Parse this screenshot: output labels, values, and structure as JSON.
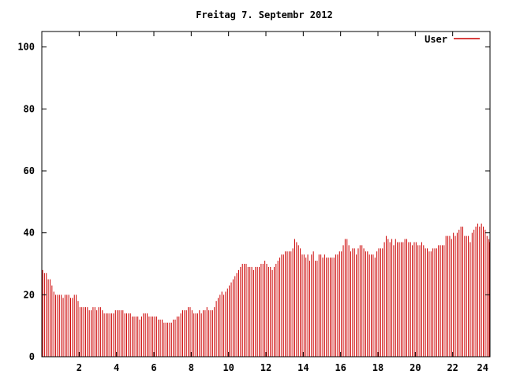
{
  "chart_data": {
    "type": "bar",
    "title": "Freitag 7. Septembr 2012",
    "xlabel": "",
    "ylabel": "",
    "xlim": [
      0,
      24
    ],
    "ylim": [
      0,
      105
    ],
    "grid": false,
    "legend_position": "top-right",
    "x_ticks": [
      "2",
      "4",
      "6",
      "8",
      "10",
      "12",
      "14",
      "16",
      "18",
      "20",
      "22",
      "24"
    ],
    "y_ticks": [
      "0",
      "20",
      "40",
      "60",
      "80",
      "100"
    ],
    "series": [
      {
        "name": "User",
        "color": "#cc0000",
        "points": [
          [
            0.0,
            28
          ],
          [
            0.1,
            27
          ],
          [
            0.2,
            27
          ],
          [
            0.3,
            25
          ],
          [
            0.4,
            25
          ],
          [
            0.5,
            23
          ],
          [
            0.6,
            21
          ],
          [
            0.7,
            20
          ],
          [
            0.8,
            20
          ],
          [
            0.9,
            20
          ],
          [
            1.0,
            20
          ],
          [
            1.1,
            19
          ],
          [
            1.2,
            20
          ],
          [
            1.3,
            20
          ],
          [
            1.4,
            20
          ],
          [
            1.5,
            19
          ],
          [
            1.6,
            19
          ],
          [
            1.7,
            20
          ],
          [
            1.8,
            20
          ],
          [
            1.9,
            18
          ],
          [
            2.0,
            16
          ],
          [
            2.1,
            16
          ],
          [
            2.2,
            16
          ],
          [
            2.3,
            16
          ],
          [
            2.4,
            16
          ],
          [
            2.5,
            15
          ],
          [
            2.6,
            15
          ],
          [
            2.7,
            16
          ],
          [
            2.8,
            16
          ],
          [
            2.9,
            15
          ],
          [
            3.0,
            16
          ],
          [
            3.1,
            16
          ],
          [
            3.2,
            15
          ],
          [
            3.3,
            14
          ],
          [
            3.4,
            14
          ],
          [
            3.5,
            14
          ],
          [
            3.6,
            14
          ],
          [
            3.7,
            14
          ],
          [
            3.8,
            14
          ],
          [
            3.9,
            15
          ],
          [
            4.0,
            15
          ],
          [
            4.1,
            15
          ],
          [
            4.2,
            15
          ],
          [
            4.3,
            15
          ],
          [
            4.4,
            14
          ],
          [
            4.5,
            14
          ],
          [
            4.6,
            14
          ],
          [
            4.7,
            14
          ],
          [
            4.8,
            13
          ],
          [
            4.9,
            13
          ],
          [
            5.0,
            13
          ],
          [
            5.1,
            13
          ],
          [
            5.2,
            12
          ],
          [
            5.3,
            13
          ],
          [
            5.4,
            14
          ],
          [
            5.5,
            14
          ],
          [
            5.6,
            14
          ],
          [
            5.7,
            13
          ],
          [
            5.8,
            13
          ],
          [
            5.9,
            13
          ],
          [
            6.0,
            13
          ],
          [
            6.1,
            13
          ],
          [
            6.2,
            12
          ],
          [
            6.3,
            12
          ],
          [
            6.4,
            12
          ],
          [
            6.5,
            11
          ],
          [
            6.6,
            11
          ],
          [
            6.7,
            11
          ],
          [
            6.8,
            11
          ],
          [
            6.9,
            11
          ],
          [
            7.0,
            12
          ],
          [
            7.1,
            12
          ],
          [
            7.2,
            13
          ],
          [
            7.3,
            13
          ],
          [
            7.4,
            14
          ],
          [
            7.5,
            15
          ],
          [
            7.6,
            15
          ],
          [
            7.7,
            15
          ],
          [
            7.8,
            16
          ],
          [
            7.9,
            16
          ],
          [
            8.0,
            15
          ],
          [
            8.1,
            14
          ],
          [
            8.2,
            14
          ],
          [
            8.3,
            14
          ],
          [
            8.4,
            15
          ],
          [
            8.5,
            14
          ],
          [
            8.6,
            15
          ],
          [
            8.7,
            15
          ],
          [
            8.8,
            16
          ],
          [
            8.9,
            15
          ],
          [
            9.0,
            15
          ],
          [
            9.1,
            15
          ],
          [
            9.2,
            16
          ],
          [
            9.3,
            18
          ],
          [
            9.4,
            19
          ],
          [
            9.5,
            20
          ],
          [
            9.6,
            21
          ],
          [
            9.7,
            20
          ],
          [
            9.8,
            21
          ],
          [
            9.9,
            22
          ],
          [
            10.0,
            23
          ],
          [
            10.1,
            24
          ],
          [
            10.2,
            25
          ],
          [
            10.3,
            26
          ],
          [
            10.4,
            27
          ],
          [
            10.5,
            28
          ],
          [
            10.6,
            29
          ],
          [
            10.7,
            30
          ],
          [
            10.8,
            30
          ],
          [
            10.9,
            30
          ],
          [
            11.0,
            29
          ],
          [
            11.1,
            29
          ],
          [
            11.2,
            29
          ],
          [
            11.3,
            28
          ],
          [
            11.4,
            29
          ],
          [
            11.5,
            29
          ],
          [
            11.6,
            29
          ],
          [
            11.7,
            30
          ],
          [
            11.8,
            30
          ],
          [
            11.9,
            31
          ],
          [
            12.0,
            30
          ],
          [
            12.1,
            29
          ],
          [
            12.2,
            29
          ],
          [
            12.3,
            28
          ],
          [
            12.4,
            29
          ],
          [
            12.5,
            30
          ],
          [
            12.6,
            31
          ],
          [
            12.7,
            32
          ],
          [
            12.8,
            33
          ],
          [
            12.9,
            33
          ],
          [
            13.0,
            34
          ],
          [
            13.1,
            34
          ],
          [
            13.2,
            34
          ],
          [
            13.3,
            34
          ],
          [
            13.4,
            35
          ],
          [
            13.5,
            38
          ],
          [
            13.6,
            37
          ],
          [
            13.7,
            36
          ],
          [
            13.8,
            35
          ],
          [
            13.9,
            33
          ],
          [
            14.0,
            33
          ],
          [
            14.1,
            32
          ],
          [
            14.2,
            33
          ],
          [
            14.3,
            31
          ],
          [
            14.4,
            33
          ],
          [
            14.5,
            34
          ],
          [
            14.6,
            31
          ],
          [
            14.7,
            31
          ],
          [
            14.8,
            33
          ],
          [
            14.9,
            33
          ],
          [
            15.0,
            32
          ],
          [
            15.1,
            33
          ],
          [
            15.2,
            32
          ],
          [
            15.3,
            32
          ],
          [
            15.4,
            32
          ],
          [
            15.5,
            32
          ],
          [
            15.6,
            32
          ],
          [
            15.7,
            33
          ],
          [
            15.8,
            33
          ],
          [
            15.9,
            34
          ],
          [
            16.0,
            34
          ],
          [
            16.1,
            36
          ],
          [
            16.2,
            38
          ],
          [
            16.3,
            38
          ],
          [
            16.4,
            36
          ],
          [
            16.5,
            34
          ],
          [
            16.6,
            35
          ],
          [
            16.7,
            35
          ],
          [
            16.8,
            33
          ],
          [
            16.9,
            35
          ],
          [
            17.0,
            36
          ],
          [
            17.1,
            36
          ],
          [
            17.2,
            35
          ],
          [
            17.3,
            34
          ],
          [
            17.4,
            34
          ],
          [
            17.5,
            33
          ],
          [
            17.6,
            33
          ],
          [
            17.7,
            33
          ],
          [
            17.8,
            32
          ],
          [
            17.9,
            34
          ],
          [
            18.0,
            35
          ],
          [
            18.1,
            35
          ],
          [
            18.2,
            35
          ],
          [
            18.3,
            37
          ],
          [
            18.4,
            39
          ],
          [
            18.5,
            38
          ],
          [
            18.6,
            37
          ],
          [
            18.7,
            38
          ],
          [
            18.8,
            36
          ],
          [
            18.9,
            38
          ],
          [
            19.0,
            37
          ],
          [
            19.1,
            37
          ],
          [
            19.2,
            37
          ],
          [
            19.3,
            37
          ],
          [
            19.4,
            38
          ],
          [
            19.5,
            38
          ],
          [
            19.6,
            37
          ],
          [
            19.7,
            37
          ],
          [
            19.8,
            36
          ],
          [
            19.9,
            37
          ],
          [
            20.0,
            37
          ],
          [
            20.1,
            36
          ],
          [
            20.2,
            36
          ],
          [
            20.3,
            37
          ],
          [
            20.4,
            36
          ],
          [
            20.5,
            35
          ],
          [
            20.6,
            35
          ],
          [
            20.7,
            34
          ],
          [
            20.8,
            34
          ],
          [
            20.9,
            35
          ],
          [
            21.0,
            35
          ],
          [
            21.1,
            35
          ],
          [
            21.2,
            36
          ],
          [
            21.3,
            36
          ],
          [
            21.4,
            36
          ],
          [
            21.5,
            36
          ],
          [
            21.6,
            39
          ],
          [
            21.7,
            39
          ],
          [
            21.8,
            39
          ],
          [
            21.9,
            38
          ],
          [
            22.0,
            40
          ],
          [
            22.1,
            39
          ],
          [
            22.2,
            40
          ],
          [
            22.3,
            41
          ],
          [
            22.4,
            42
          ],
          [
            22.5,
            42
          ],
          [
            22.6,
            39
          ],
          [
            22.7,
            39
          ],
          [
            22.8,
            39
          ],
          [
            22.9,
            37
          ],
          [
            23.0,
            40
          ],
          [
            23.1,
            41
          ],
          [
            23.2,
            42
          ],
          [
            23.3,
            43
          ],
          [
            23.4,
            42
          ],
          [
            23.5,
            43
          ],
          [
            23.6,
            42
          ],
          [
            23.7,
            41
          ],
          [
            23.8,
            39
          ],
          [
            23.9,
            38
          ],
          [
            24.0,
            37
          ],
          [
            24.1,
            37
          ],
          [
            24.2,
            36
          ],
          [
            24.3,
            35
          ],
          [
            24.4,
            34
          ],
          [
            24.5,
            34
          ]
        ]
      }
    ]
  }
}
